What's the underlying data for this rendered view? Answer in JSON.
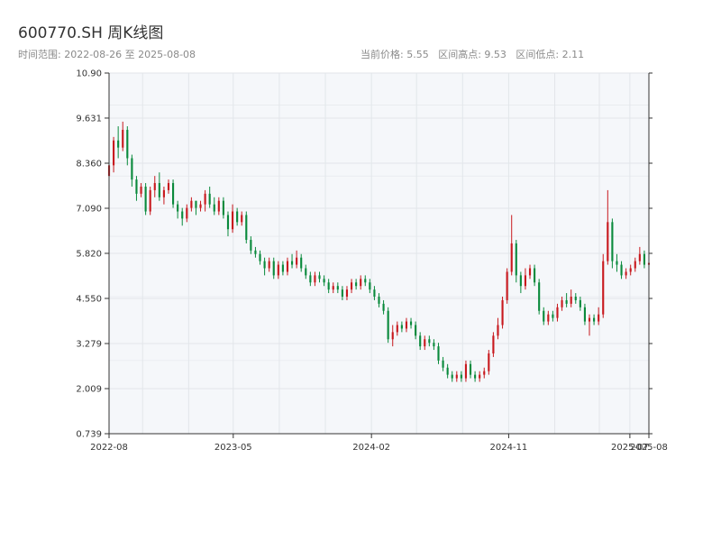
{
  "header": {
    "title": "600770.SH 周K线图",
    "date_range": "时间范围: 2022-08-26 至 2025-08-08",
    "current_price": "当前价格: 5.55",
    "range_high": "区间高点: 9.53",
    "range_low": "区间低点: 2.11"
  },
  "colors": {
    "up": "#c8191e",
    "down": "#0a8a3c",
    "plot_bg": "#f5f7fa",
    "grid": "#e2e6ea",
    "axis": "#333333"
  },
  "chart_data": {
    "type": "candlestick",
    "title": "600770.SH 周K线图",
    "ylim": [
      0.739,
      10.9
    ],
    "y_ticks": [
      "0.739",
      "2.009",
      "3.279",
      "4.550",
      "5.820",
      "7.090",
      "8.360",
      "9.631",
      "10.90"
    ],
    "x_ticks": [
      "2022-08",
      "2023-05",
      "2024-02",
      "2024-11",
      "2025-07",
      "2025-08"
    ],
    "x_tick_dates": [
      "2022-08-26",
      "2023-05-01",
      "2024-02-01",
      "2024-11-01",
      "2025-07-01",
      "2025-08-08"
    ],
    "grid": true,
    "up_color": "red",
    "down_color": "green",
    "start_date": "2022-08-26",
    "end_date": "2025-08-08",
    "candles": [
      [
        8.0,
        8.3,
        7.9,
        8.5
      ],
      [
        8.3,
        9.0,
        8.1,
        9.1
      ],
      [
        9.0,
        8.8,
        8.5,
        9.4
      ],
      [
        8.8,
        9.3,
        8.7,
        9.53
      ],
      [
        9.3,
        8.5,
        8.3,
        9.4
      ],
      [
        8.5,
        7.9,
        7.7,
        8.6
      ],
      [
        7.9,
        7.5,
        7.3,
        8.0
      ],
      [
        7.5,
        7.7,
        7.4,
        7.8
      ],
      [
        7.7,
        7.0,
        6.9,
        7.8
      ],
      [
        7.0,
        7.6,
        6.9,
        7.7
      ],
      [
        7.6,
        7.8,
        7.4,
        8.0
      ],
      [
        7.8,
        7.4,
        7.3,
        8.1
      ],
      [
        7.4,
        7.6,
        7.2,
        7.7
      ],
      [
        7.6,
        7.8,
        7.5,
        7.9
      ],
      [
        7.8,
        7.2,
        7.1,
        7.9
      ],
      [
        7.2,
        7.0,
        6.8,
        7.3
      ],
      [
        7.0,
        6.8,
        6.6,
        7.1
      ],
      [
        6.8,
        7.1,
        6.7,
        7.2
      ],
      [
        7.1,
        7.3,
        7.0,
        7.4
      ],
      [
        7.3,
        7.1,
        6.9,
        7.3
      ],
      [
        7.1,
        7.2,
        7.0,
        7.3
      ],
      [
        7.2,
        7.5,
        7.0,
        7.6
      ],
      [
        7.5,
        7.2,
        7.1,
        7.7
      ],
      [
        7.2,
        7.0,
        6.9,
        7.4
      ],
      [
        7.0,
        7.3,
        6.9,
        7.4
      ],
      [
        7.3,
        6.9,
        6.8,
        7.4
      ],
      [
        6.9,
        6.5,
        6.3,
        7.0
      ],
      [
        6.5,
        7.0,
        6.4,
        7.2
      ],
      [
        7.0,
        6.7,
        6.6,
        7.1
      ],
      [
        6.7,
        6.9,
        6.6,
        7.0
      ],
      [
        6.9,
        6.2,
        6.1,
        7.0
      ],
      [
        6.2,
        5.9,
        5.8,
        6.3
      ],
      [
        5.9,
        5.8,
        5.7,
        6.0
      ],
      [
        5.8,
        5.6,
        5.5,
        5.9
      ],
      [
        5.6,
        5.4,
        5.2,
        5.7
      ],
      [
        5.4,
        5.6,
        5.3,
        5.7
      ],
      [
        5.6,
        5.2,
        5.1,
        5.7
      ],
      [
        5.2,
        5.5,
        5.1,
        5.6
      ],
      [
        5.5,
        5.3,
        5.2,
        5.6
      ],
      [
        5.3,
        5.6,
        5.2,
        5.7
      ],
      [
        5.6,
        5.5,
        5.4,
        5.8
      ],
      [
        5.5,
        5.7,
        5.4,
        5.9
      ],
      [
        5.7,
        5.4,
        5.3,
        5.8
      ],
      [
        5.4,
        5.2,
        5.1,
        5.5
      ],
      [
        5.2,
        5.0,
        4.9,
        5.3
      ],
      [
        5.0,
        5.2,
        4.9,
        5.3
      ],
      [
        5.2,
        5.1,
        5.0,
        5.3
      ],
      [
        5.1,
        5.0,
        4.9,
        5.2
      ],
      [
        5.0,
        4.8,
        4.7,
        5.1
      ],
      [
        4.8,
        4.9,
        4.7,
        5.0
      ],
      [
        4.9,
        4.8,
        4.7,
        5.0
      ],
      [
        4.8,
        4.6,
        4.5,
        4.9
      ],
      [
        4.6,
        4.8,
        4.5,
        4.9
      ],
      [
        4.8,
        5.0,
        4.7,
        5.1
      ],
      [
        5.0,
        4.9,
        4.8,
        5.1
      ],
      [
        4.9,
        5.1,
        4.8,
        5.2
      ],
      [
        5.1,
        5.0,
        4.9,
        5.2
      ],
      [
        5.0,
        4.8,
        4.7,
        5.1
      ],
      [
        4.8,
        4.6,
        4.5,
        4.9
      ],
      [
        4.6,
        4.4,
        4.3,
        4.7
      ],
      [
        4.4,
        4.2,
        4.1,
        4.5
      ],
      [
        4.2,
        3.4,
        3.3,
        4.3
      ],
      [
        3.4,
        3.6,
        3.2,
        3.8
      ],
      [
        3.6,
        3.8,
        3.5,
        3.9
      ],
      [
        3.8,
        3.7,
        3.6,
        3.9
      ],
      [
        3.7,
        3.9,
        3.6,
        4.0
      ],
      [
        3.9,
        3.8,
        3.7,
        4.0
      ],
      [
        3.8,
        3.5,
        3.4,
        3.9
      ],
      [
        3.5,
        3.2,
        3.1,
        3.6
      ],
      [
        3.2,
        3.4,
        3.1,
        3.5
      ],
      [
        3.4,
        3.3,
        3.2,
        3.5
      ],
      [
        3.3,
        3.2,
        3.1,
        3.4
      ],
      [
        3.2,
        2.8,
        2.7,
        3.3
      ],
      [
        2.8,
        2.6,
        2.5,
        2.9
      ],
      [
        2.6,
        2.4,
        2.3,
        2.7
      ],
      [
        2.4,
        2.3,
        2.2,
        2.5
      ],
      [
        2.3,
        2.4,
        2.2,
        2.5
      ],
      [
        2.4,
        2.3,
        2.2,
        2.5
      ],
      [
        2.3,
        2.7,
        2.2,
        2.8
      ],
      [
        2.7,
        2.4,
        2.3,
        2.8
      ],
      [
        2.4,
        2.3,
        2.2,
        2.5
      ],
      [
        2.3,
        2.4,
        2.2,
        2.5
      ],
      [
        2.4,
        2.5,
        2.3,
        2.6
      ],
      [
        2.5,
        3.0,
        2.4,
        3.1
      ],
      [
        3.0,
        3.5,
        2.9,
        3.6
      ],
      [
        3.5,
        3.8,
        3.4,
        4.0
      ],
      [
        3.8,
        4.5,
        3.7,
        4.6
      ],
      [
        4.5,
        5.3,
        4.4,
        5.4
      ],
      [
        5.3,
        6.1,
        5.2,
        6.9
      ],
      [
        6.1,
        5.2,
        5.0,
        6.2
      ],
      [
        5.2,
        4.9,
        4.7,
        5.3
      ],
      [
        4.9,
        5.2,
        4.8,
        5.4
      ],
      [
        5.2,
        5.4,
        5.1,
        5.5
      ],
      [
        5.4,
        5.0,
        4.9,
        5.5
      ],
      [
        5.0,
        4.2,
        4.1,
        5.1
      ],
      [
        4.2,
        3.9,
        3.8,
        4.3
      ],
      [
        3.9,
        4.1,
        3.8,
        4.2
      ],
      [
        4.1,
        4.0,
        3.9,
        4.2
      ],
      [
        4.0,
        4.3,
        3.9,
        4.4
      ],
      [
        4.3,
        4.5,
        4.2,
        4.6
      ],
      [
        4.5,
        4.4,
        4.3,
        4.7
      ],
      [
        4.4,
        4.6,
        4.3,
        4.8
      ],
      [
        4.6,
        4.5,
        4.4,
        4.7
      ],
      [
        4.5,
        4.3,
        4.2,
        4.6
      ],
      [
        4.3,
        3.9,
        3.8,
        4.4
      ],
      [
        3.9,
        4.0,
        3.5,
        4.1
      ],
      [
        4.0,
        3.9,
        3.8,
        4.1
      ],
      [
        3.9,
        4.1,
        3.8,
        4.3
      ],
      [
        4.1,
        5.6,
        4.0,
        5.8
      ],
      [
        5.6,
        6.7,
        5.5,
        7.6
      ],
      [
        6.7,
        5.6,
        5.4,
        6.8
      ],
      [
        5.6,
        5.5,
        5.3,
        5.8
      ],
      [
        5.5,
        5.2,
        5.1,
        5.6
      ],
      [
        5.2,
        5.3,
        5.1,
        5.4
      ],
      [
        5.3,
        5.4,
        5.2,
        5.5
      ],
      [
        5.4,
        5.6,
        5.3,
        5.7
      ],
      [
        5.6,
        5.8,
        5.5,
        6.0
      ],
      [
        5.8,
        5.5,
        5.4,
        5.9
      ],
      [
        5.5,
        5.55,
        5.4,
        5.7
      ]
    ]
  }
}
